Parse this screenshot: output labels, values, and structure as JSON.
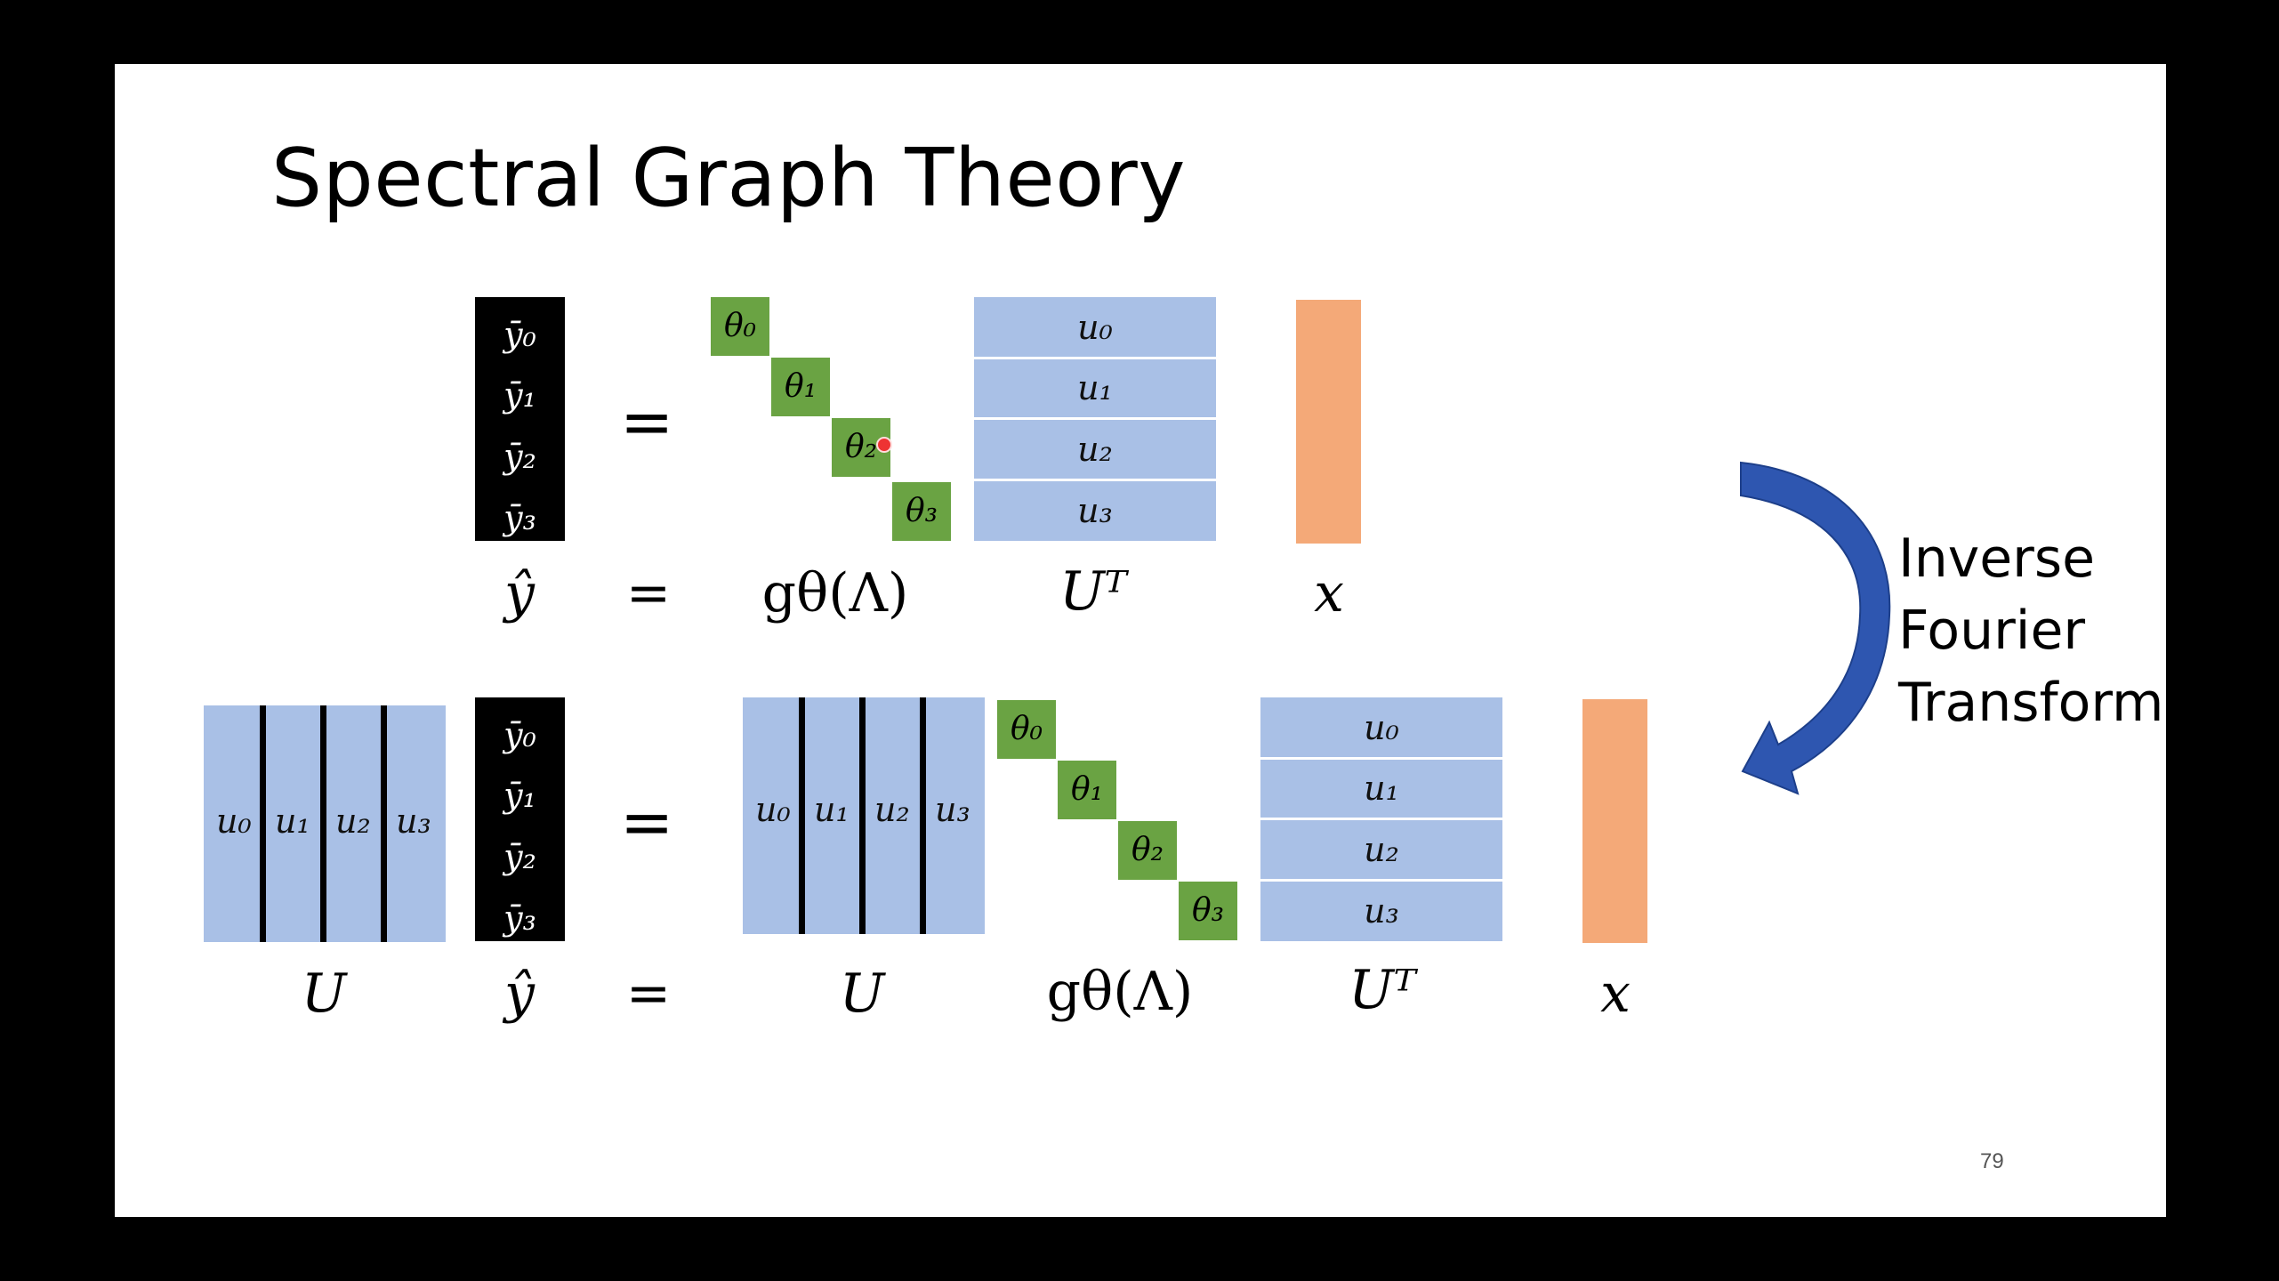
{
  "title": "Spectral Graph Theory",
  "top": {
    "y_cells": [
      "ȳ₀",
      "ȳ₁",
      "ȳ₂",
      "ȳ₃"
    ],
    "theta_cells": [
      "θ₀",
      "θ₁",
      "θ₂",
      "θ₃"
    ],
    "u_rows": [
      "u₀",
      "u₁",
      "u₂",
      "u₃"
    ],
    "equals": "=",
    "labels": {
      "yhat": "ŷ",
      "equals": "=",
      "g": "gθ(Λ)",
      "ut": "Uᵀ",
      "x": "x"
    }
  },
  "bottom": {
    "u_cols_left": [
      "u₀",
      "u₁",
      "u₂",
      "u₃"
    ],
    "y_cells": [
      "ȳ₀",
      "ȳ₁",
      "ȳ₂",
      "ȳ₃"
    ],
    "u_cols_right": [
      "u₀",
      "u₁",
      "u₂",
      "u₃"
    ],
    "theta_cells": [
      "θ₀",
      "θ₁",
      "θ₂",
      "θ₃"
    ],
    "u_rows": [
      "u₀",
      "u₁",
      "u₂",
      "u₃"
    ],
    "equals": "=",
    "labels": {
      "u_left": "U",
      "yhat": "ŷ",
      "equals": "=",
      "u_mid": "U",
      "g": "gθ(Λ)",
      "ut": "Uᵀ",
      "x": "x"
    }
  },
  "arrow_label": [
    "Inverse",
    "Fourier",
    "Transform"
  ],
  "page_number": "79",
  "colors": {
    "green": "#6aa343",
    "blue": "#a9c0e6",
    "orange": "#f4a978",
    "arrow": "#2e56b0"
  }
}
